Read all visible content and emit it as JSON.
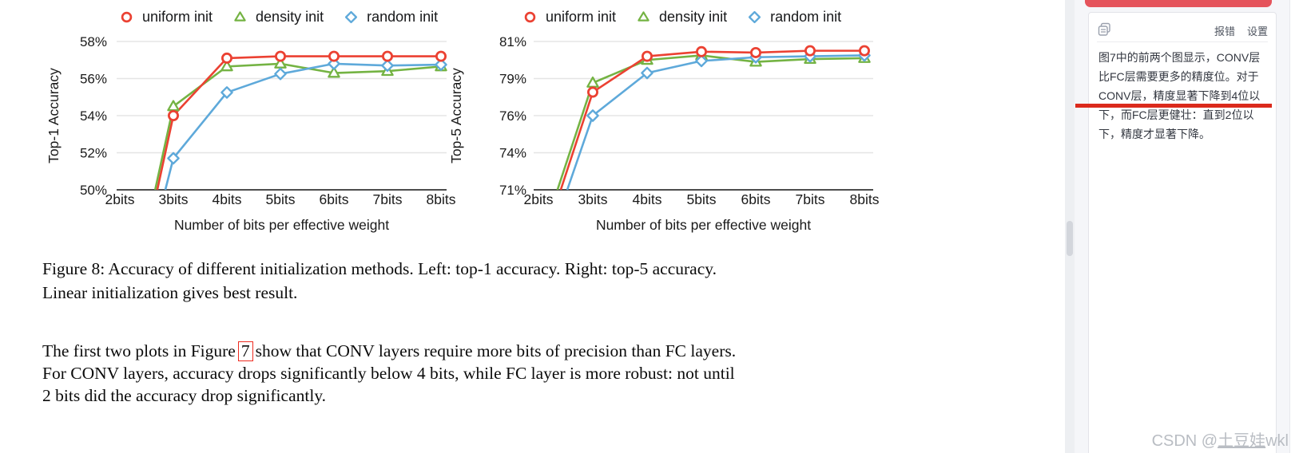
{
  "chart_data": [
    {
      "type": "line",
      "ylabel": "Top-1 Accuracy",
      "xlabel": "Number of bits per effective weight",
      "categories": [
        "2bits",
        "3bits",
        "4bits",
        "5bits",
        "6bits",
        "7bits",
        "8bits"
      ],
      "ytick_labels": [
        "58%",
        "56%",
        "54%",
        "52%",
        "50%"
      ],
      "ytick_values": [
        58,
        56,
        54,
        52,
        50
      ],
      "ylim": [
        50,
        58
      ],
      "grid": true,
      "legend_position": "top",
      "series": [
        {
          "name": "uniform init",
          "marker": "circle",
          "color": "#eb4132",
          "values": [
            null,
            54.0,
            57.1,
            57.2,
            57.2,
            57.2,
            57.2
          ],
          "enters_from_below_axis_at_x": 2.7
        },
        {
          "name": "density init",
          "marker": "triangle",
          "color": "#74b343",
          "values": [
            null,
            54.5,
            56.65,
            56.8,
            56.3,
            56.4,
            56.65
          ],
          "enters_from_below_axis_at_x": 2.66
        },
        {
          "name": "random init",
          "marker": "diamond",
          "color": "#5ea9da",
          "values": [
            null,
            51.7,
            55.25,
            56.25,
            56.8,
            56.7,
            56.75
          ],
          "enters_from_below_axis_at_x": 2.85
        }
      ]
    },
    {
      "type": "line",
      "ylabel": "Top-5 Accuracy",
      "xlabel": "Number of bits per effective weight",
      "categories": [
        "2bits",
        "3bits",
        "4bits",
        "5bits",
        "6bits",
        "7bits",
        "8bits"
      ],
      "ytick_labels": [
        "81%",
        "79%",
        "76%",
        "74%",
        "71%"
      ],
      "ytick_values": [
        81,
        79,
        76,
        74,
        71
      ],
      "ylim": [
        71,
        81
      ],
      "grid": true,
      "legend_position": "top",
      "series": [
        {
          "name": "uniform init",
          "marker": "circle",
          "color": "#eb4132",
          "values": [
            null,
            77.9,
            80.2,
            80.45,
            80.4,
            80.5,
            80.5
          ],
          "enters_from_below_axis_at_x": 2.41
        },
        {
          "name": "density init",
          "marker": "triangle",
          "color": "#74b343",
          "values": [
            null,
            78.65,
            80.0,
            80.25,
            79.9,
            80.05,
            80.1
          ],
          "enters_from_below_axis_at_x": 2.35
        },
        {
          "name": "random init",
          "marker": "diamond",
          "color": "#5ea9da",
          "values": [
            null,
            76.0,
            79.3,
            79.95,
            80.15,
            80.2,
            80.25
          ],
          "enters_from_below_axis_at_x": 2.53
        }
      ]
    }
  ],
  "caption": {
    "line1": "Figure 8: Accuracy of different initialization methods. Left: top-1 accuracy. Right: top-5 accuracy.",
    "line2": "Linear initialization gives best result."
  },
  "paragraph": {
    "line1_pre": "The first two plots in Figure",
    "line1_ref": "7",
    "line1_post": "show that CONV layers require more bits of precision than FC layers.",
    "line2": "For CONV layers, accuracy drops significantly below 4 bits, while FC layer is more robust: not until",
    "line3": "2 bits did the accuracy drop significantly."
  },
  "sidebar": {
    "report_label": "报错",
    "settings_label": "设置",
    "lines": [
      "图7中的前两个图显示，CONV层",
      "比FC层需要更多的精度位。对于",
      "CONV层，精度显著下降到4位以",
      "下，而FC层更健壮：直到2位以",
      "下，精度才显著下降。"
    ]
  },
  "watermark": {
    "prefix": "CSDN @",
    "user": "土豆娃",
    "suffix": "wkl"
  },
  "colors": {
    "series_red": "#eb4132",
    "series_green": "#74b343",
    "series_blue": "#5ea9da",
    "gridline": "#e5e5e5",
    "axis": "#4d4d4d",
    "highlight_red_bar": "#e5545c",
    "highlight_underline": "#db2a1c",
    "citation_box_border": "#ee2b20",
    "panel_border": "#e3e4e9",
    "watermark_gray": "#b9bdc3"
  }
}
